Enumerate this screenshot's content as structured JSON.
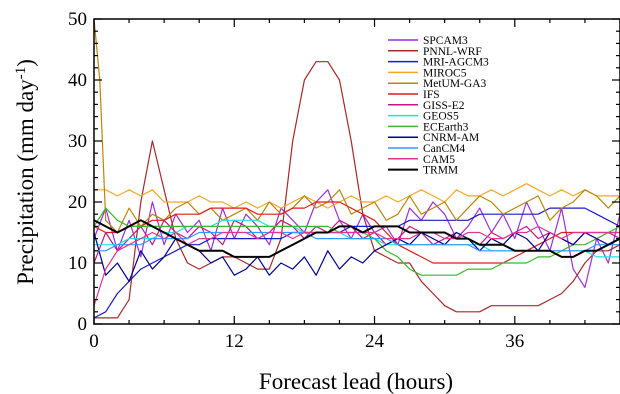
{
  "chart_data": {
    "type": "line",
    "xlabel": "Forecast lead (hours)",
    "ylabel": "Precipitation (mm day",
    "ylabel_sup": "-1",
    "ylabel_close": ")",
    "xlim": [
      0,
      45
    ],
    "ylim": [
      0,
      50
    ],
    "xticks": [
      0,
      12,
      24,
      36
    ],
    "yticks": [
      0,
      10,
      20,
      30,
      40,
      50
    ],
    "grid": false,
    "legend_position": "top-right",
    "series": [
      {
        "name": "SPCAM3",
        "color": "#9b30d9",
        "x": [
          0,
          1,
          2,
          3,
          4,
          5,
          6,
          7,
          8,
          9,
          10,
          11,
          12,
          13,
          14,
          15,
          16,
          17,
          18,
          19,
          20,
          21,
          22,
          23,
          24,
          25,
          26,
          27,
          28,
          29,
          30,
          31,
          32,
          33,
          34,
          35,
          36,
          37,
          38,
          39,
          40,
          41,
          42,
          43,
          44,
          45
        ],
        "y": [
          14,
          19,
          12,
          17,
          11,
          20,
          13,
          18,
          15,
          17,
          12,
          19,
          14,
          18,
          16,
          13,
          19,
          17,
          15,
          20,
          22,
          17,
          14,
          18,
          15,
          16,
          13,
          19,
          17,
          20,
          18,
          14,
          16,
          19,
          15,
          18,
          14,
          20,
          16,
          12,
          19,
          9,
          6,
          14,
          10,
          18
        ]
      },
      {
        "name": "PNNL-WRF",
        "color": "#a52a2a",
        "x": [
          0,
          1,
          2,
          3,
          4,
          5,
          6,
          7,
          8,
          9,
          10,
          11,
          12,
          13,
          14,
          15,
          16,
          17,
          18,
          19,
          20,
          21,
          22,
          23,
          24,
          25,
          26,
          27,
          28,
          29,
          30,
          31,
          32,
          33,
          34,
          35,
          36,
          37,
          38,
          39,
          40,
          41,
          42,
          43,
          44,
          45
        ],
        "y": [
          1,
          1,
          1,
          4,
          20,
          30,
          22,
          14,
          10,
          9,
          10,
          11,
          11,
          10,
          9,
          9,
          14,
          30,
          40,
          43,
          43,
          40,
          30,
          18,
          12,
          11,
          10,
          10,
          7,
          5,
          3,
          2,
          2,
          2,
          3,
          3,
          3,
          3,
          3,
          4,
          5,
          7,
          10,
          12,
          12,
          13
        ]
      },
      {
        "name": "MRI-AGCM3",
        "color": "#1a1acd",
        "x": [
          0,
          1,
          2,
          3,
          4,
          5,
          6,
          7,
          8,
          9,
          10,
          11,
          12,
          13,
          14,
          15,
          16,
          17,
          18,
          19,
          20,
          21,
          22,
          23,
          24,
          25,
          26,
          27,
          28,
          29,
          30,
          31,
          32,
          33,
          34,
          35,
          36,
          37,
          38,
          39,
          40,
          41,
          42,
          43,
          44,
          45
        ],
        "y": [
          1,
          2,
          5,
          7,
          9,
          10,
          11,
          12,
          13,
          13,
          14,
          14,
          14,
          14,
          14,
          14,
          14,
          15,
          15,
          15,
          15,
          15,
          16,
          16,
          16,
          16,
          16,
          17,
          17,
          17,
          17,
          17,
          17,
          18,
          18,
          18,
          18,
          18,
          18,
          19,
          19,
          19,
          19,
          18,
          17,
          16
        ]
      },
      {
        "name": "MIROC5",
        "color": "#f5a623",
        "x": [
          0,
          1,
          2,
          3,
          4,
          5,
          6,
          7,
          8,
          9,
          10,
          11,
          12,
          13,
          14,
          15,
          16,
          17,
          18,
          19,
          20,
          21,
          22,
          23,
          24,
          25,
          26,
          27,
          28,
          29,
          30,
          31,
          32,
          33,
          34,
          35,
          36,
          37,
          38,
          39,
          40,
          41,
          42,
          43,
          44,
          45
        ],
        "y": [
          22,
          22,
          21,
          22,
          21,
          22,
          20,
          20,
          20,
          21,
          20,
          20,
          19,
          20,
          19,
          20,
          19,
          20,
          21,
          20,
          19,
          20,
          21,
          20,
          20,
          21,
          20,
          21,
          22,
          21,
          20,
          22,
          21,
          21,
          22,
          21,
          22,
          23,
          22,
          21,
          22,
          21,
          22,
          21,
          21,
          21
        ]
      },
      {
        "name": "MetUM-GA3",
        "color": "#b8860b",
        "x": [
          0,
          0.5,
          1,
          2,
          3,
          4,
          5,
          6,
          7,
          8,
          9,
          10,
          11,
          12,
          13,
          14,
          15,
          16,
          17,
          18,
          19,
          20,
          21,
          22,
          23,
          24,
          25,
          26,
          27,
          28,
          29,
          30,
          31,
          32,
          33,
          34,
          35,
          36,
          37,
          38,
          39,
          40,
          41,
          42,
          43,
          44,
          45
        ],
        "y": [
          50,
          40,
          17,
          15,
          19,
          16,
          18,
          17,
          19,
          20,
          18,
          19,
          17,
          18,
          19,
          17,
          20,
          18,
          19,
          21,
          19,
          20,
          22,
          18,
          19,
          20,
          17,
          18,
          21,
          18,
          19,
          20,
          17,
          19,
          21,
          20,
          18,
          19,
          20,
          21,
          17,
          19,
          20,
          22,
          21,
          19,
          21
        ]
      },
      {
        "name": "IFS",
        "color": "#e01b1b",
        "x": [
          0,
          1,
          2,
          3,
          4,
          5,
          6,
          7,
          8,
          9,
          10,
          11,
          12,
          13,
          14,
          15,
          16,
          17,
          18,
          19,
          20,
          21,
          22,
          23,
          24,
          25,
          26,
          27,
          28,
          29,
          30,
          31,
          32,
          33,
          34,
          35,
          36,
          37,
          38,
          39,
          40,
          41,
          42,
          43,
          44,
          45
        ],
        "y": [
          16,
          15,
          15,
          16,
          16,
          17,
          17,
          18,
          18,
          18,
          19,
          19,
          19,
          19,
          18,
          18,
          18,
          19,
          19,
          20,
          20,
          20,
          19,
          18,
          17,
          15,
          13,
          12,
          11,
          10,
          10,
          10,
          10,
          10,
          10,
          10,
          11,
          12,
          13,
          14,
          15,
          15,
          15,
          15,
          15,
          15
        ]
      },
      {
        "name": "GISS-E2",
        "color": "#c71585",
        "x": [
          0,
          1,
          2,
          3,
          4,
          5,
          6,
          7,
          8,
          9,
          10,
          11,
          12,
          13,
          14,
          15,
          16,
          17,
          18,
          19,
          20,
          21,
          22,
          23,
          24,
          25,
          26,
          27,
          28,
          29,
          30,
          31,
          32,
          33,
          34,
          35,
          36,
          37,
          38,
          39,
          40,
          41,
          42,
          43,
          44,
          45
        ],
        "y": [
          10,
          15,
          12,
          14,
          16,
          13,
          17,
          15,
          14,
          16,
          15,
          13,
          17,
          16,
          14,
          15,
          17,
          16,
          14,
          16,
          15,
          17,
          16,
          14,
          15,
          13,
          14,
          16,
          15,
          13,
          14,
          15,
          14,
          13,
          15,
          14,
          15,
          16,
          14,
          15,
          14,
          13,
          15,
          14,
          15,
          14
        ]
      },
      {
        "name": "GEOS5",
        "color": "#20e0e0",
        "x": [
          0,
          1,
          2,
          3,
          4,
          5,
          6,
          7,
          8,
          9,
          10,
          11,
          12,
          13,
          14,
          15,
          16,
          17,
          18,
          19,
          20,
          21,
          22,
          23,
          24,
          25,
          26,
          27,
          28,
          29,
          30,
          31,
          32,
          33,
          34,
          35,
          36,
          37,
          38,
          39,
          40,
          41,
          42,
          43,
          44,
          45
        ],
        "y": [
          13,
          13,
          13,
          14,
          14,
          14,
          15,
          15,
          16,
          16,
          16,
          17,
          17,
          17,
          17,
          16,
          16,
          16,
          15,
          15,
          15,
          15,
          14,
          14,
          14,
          13,
          13,
          13,
          13,
          13,
          13,
          13,
          13,
          13,
          12,
          12,
          12,
          12,
          12,
          12,
          12,
          12,
          12,
          11,
          11,
          11
        ]
      },
      {
        "name": "ECEarth3",
        "color": "#3cb82e",
        "x": [
          0,
          1,
          2,
          3,
          4,
          5,
          6,
          7,
          8,
          9,
          10,
          11,
          12,
          13,
          14,
          15,
          16,
          17,
          18,
          19,
          20,
          21,
          22,
          23,
          24,
          25,
          26,
          27,
          28,
          29,
          30,
          31,
          32,
          33,
          34,
          35,
          36,
          37,
          38,
          39,
          40,
          41,
          42,
          43,
          44,
          45
        ],
        "y": [
          16,
          19,
          17,
          16,
          16,
          16,
          16,
          16,
          16,
          16,
          16,
          16,
          16,
          16,
          16,
          16,
          16,
          16,
          16,
          16,
          16,
          15,
          15,
          15,
          14,
          12,
          11,
          9,
          8,
          8,
          8,
          8,
          9,
          9,
          9,
          10,
          10,
          10,
          11,
          11,
          12,
          13,
          13,
          14,
          15,
          16
        ]
      },
      {
        "name": "CNRM-AM",
        "color": "#00008b",
        "x": [
          0,
          1,
          2,
          3,
          4,
          5,
          6,
          7,
          8,
          9,
          10,
          11,
          12,
          13,
          14,
          15,
          16,
          17,
          18,
          19,
          20,
          21,
          22,
          23,
          24,
          25,
          26,
          27,
          28,
          29,
          30,
          31,
          32,
          33,
          34,
          35,
          36,
          37,
          38,
          39,
          40,
          41,
          42,
          43,
          44,
          45
        ],
        "y": [
          15,
          8,
          10,
          7,
          12,
          9,
          11,
          14,
          13,
          12,
          10,
          11,
          8,
          9,
          11,
          8,
          10,
          9,
          11,
          8,
          12,
          9,
          11,
          10,
          12,
          13,
          14,
          13,
          15,
          14,
          13,
          15,
          14,
          12,
          14,
          13,
          15,
          14,
          12,
          15,
          14,
          13,
          15,
          14,
          13,
          14
        ]
      },
      {
        "name": "CanCM4",
        "color": "#3399ff",
        "x": [
          0,
          1,
          2,
          3,
          4,
          5,
          6,
          7,
          8,
          9,
          10,
          11,
          12,
          13,
          14,
          15,
          16,
          17,
          18,
          19,
          20,
          21,
          22,
          23,
          24,
          25,
          26,
          27,
          28,
          29,
          30,
          31,
          32,
          33,
          34,
          35,
          36,
          37,
          38,
          39,
          40,
          41,
          42,
          43,
          44,
          45
        ],
        "y": [
          12,
          12,
          13,
          13,
          13,
          14,
          14,
          14,
          14,
          15,
          15,
          15,
          15,
          15,
          15,
          15,
          15,
          15,
          15,
          14,
          14,
          14,
          14,
          14,
          14,
          14,
          13,
          13,
          13,
          13,
          13,
          13,
          13,
          12,
          12,
          12,
          12,
          12,
          12,
          12,
          12,
          12,
          12,
          13,
          13,
          13
        ]
      },
      {
        "name": "CAM5",
        "color": "#e0348e",
        "x": [
          0,
          1,
          2,
          3,
          4,
          5,
          6,
          7,
          8,
          9,
          10,
          11,
          12,
          13,
          14,
          15,
          16,
          17,
          18,
          19,
          20,
          21,
          22,
          23,
          24,
          25,
          26,
          27,
          28,
          29,
          30,
          31,
          32,
          33,
          34,
          35,
          36,
          37,
          38,
          39,
          40,
          41,
          42,
          43,
          44,
          45
        ],
        "y": [
          3,
          9,
          12,
          13,
          14,
          15,
          14,
          15,
          13,
          14,
          14,
          15,
          15,
          15,
          14,
          15,
          15,
          14,
          15,
          15,
          15,
          15,
          15,
          15,
          15,
          14,
          14,
          14,
          15,
          15,
          14,
          14,
          15,
          15,
          14,
          14,
          15,
          15,
          16,
          15,
          14,
          15,
          15,
          15,
          15,
          15
        ]
      },
      {
        "name": "TRMM",
        "color": "#000000",
        "x": [
          0,
          1,
          2,
          3,
          4,
          5,
          6,
          7,
          8,
          9,
          10,
          11,
          12,
          13,
          14,
          15,
          16,
          17,
          18,
          19,
          20,
          21,
          22,
          23,
          24,
          25,
          26,
          27,
          28,
          29,
          30,
          31,
          32,
          33,
          34,
          35,
          36,
          37,
          38,
          39,
          40,
          41,
          42,
          43,
          44,
          45
        ],
        "y": [
          17,
          16,
          15,
          16,
          17,
          16,
          15,
          14,
          13,
          12,
          12,
          12,
          11,
          11,
          11,
          11,
          12,
          13,
          14,
          15,
          15,
          16,
          16,
          15,
          16,
          16,
          16,
          15,
          15,
          15,
          15,
          14,
          14,
          13,
          13,
          13,
          12,
          12,
          12,
          12,
          11,
          11,
          12,
          12,
          13,
          14
        ]
      }
    ]
  }
}
